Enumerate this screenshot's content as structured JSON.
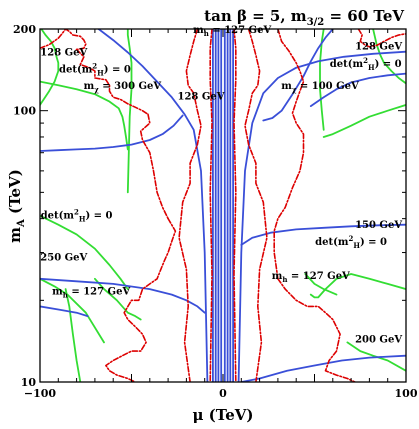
{
  "chart_data": {
    "type": "line",
    "title": {
      "main": "tan β = 5, m",
      "sub": "3/2",
      "rest": " = 60 TeV"
    },
    "xlabel": "μ (TeV)",
    "ylabel": {
      "main": "m",
      "sub": "A",
      "rest": " (TeV)"
    },
    "xlim": [
      -100,
      100
    ],
    "ylim": [
      10,
      200
    ],
    "yscale": "log",
    "grid": false,
    "x_ticks": [
      "−100",
      "0",
      "100"
    ],
    "y_ticks": [
      "10",
      "100",
      "200"
    ],
    "colors": {
      "green": "#33dd33",
      "red": "#dd0000",
      "blue": "#3a4fd8"
    },
    "annotations": [
      {
        "text": "128 GeV",
        "x": -87,
        "y": 160
      },
      {
        "text": "128 GeV",
        "x": 85,
        "y": 168
      },
      {
        "text": "m",
        "sub": "h",
        "rest": " = 127 GeV",
        "x": 5,
        "y": 193
      },
      {
        "text": "det(m",
        "sup": "2",
        "sub": "H",
        "rest": ") = 0",
        "x": -70,
        "y": 138
      },
      {
        "text": "det(m",
        "sup": "2",
        "sub": "H",
        "rest": ") = 0",
        "x": 78,
        "y": 145
      },
      {
        "text": "m",
        "sub": "χ",
        "rest": " = 300 GeV",
        "x": -55,
        "y": 120
      },
      {
        "text": "m",
        "sub": "χ",
        "rest": " = 100 GeV",
        "x": 53,
        "y": 120
      },
      {
        "text": "128 GeV",
        "x": -12,
        "y": 110
      },
      {
        "text": "det(m",
        "sup": "2",
        "sub": "H",
        "rest": ") = 0",
        "x": -80,
        "y": 40
      },
      {
        "text": "det(m",
        "sup": "2",
        "sub": "H",
        "rest": ") = 0",
        "x": 70,
        "y": 32
      },
      {
        "text": "150 GeV",
        "x": 85,
        "y": 37
      },
      {
        "text": "250 GeV",
        "x": -87,
        "y": 28
      },
      {
        "text": "m",
        "sub": "h",
        "rest": " = 127 GeV",
        "x": 48,
        "y": 24
      },
      {
        "text": "m",
        "sub": "h",
        "rest": " = 127 GeV",
        "x": -72,
        "y": 21
      },
      {
        "text": "200 GeV",
        "x": 85,
        "y": 14
      }
    ],
    "series": [
      {
        "color": "green",
        "style": "solid",
        "x": [
          -99,
          -97,
          -94,
          -92,
          -91,
          -90,
          -90,
          -92,
          -95,
          -98,
          -100
        ],
        "y": [
          199,
          190,
          180,
          170,
          158,
          150,
          140,
          128,
          118,
          110,
          105
        ]
      },
      {
        "color": "green",
        "style": "solid",
        "x": [
          -100,
          -90,
          -80,
          -70,
          -62,
          -57,
          -55,
          -54,
          -53,
          -52
        ],
        "y": [
          128,
          124,
          120,
          115,
          108,
          102,
          95,
          88,
          80,
          72
        ]
      },
      {
        "color": "green",
        "style": "solid",
        "x": [
          -52,
          -51,
          -50,
          -50,
          -51,
          -52,
          -52
        ],
        "y": [
          50,
          95,
          120,
          150,
          170,
          190,
          200
        ]
      },
      {
        "color": "green",
        "style": "solid",
        "x": [
          -100,
          -90,
          -80,
          -70,
          -62,
          -56,
          -52
        ],
        "y": [
          41,
          38,
          35,
          31,
          27,
          24,
          22
        ]
      },
      {
        "color": "green",
        "style": "solid",
        "x": [
          -100,
          -92,
          -85,
          -75,
          -65
        ],
        "y": [
          24,
          22.5,
          21,
          18,
          14
        ]
      },
      {
        "color": "green",
        "style": "solid",
        "x": [
          -86,
          -84,
          -82,
          -80,
          -78
        ],
        "y": [
          22,
          19,
          15,
          12,
          10
        ]
      },
      {
        "color": "green",
        "style": "solid",
        "x": [
          -70,
          -65,
          -58,
          -52,
          -48,
          -45
        ],
        "y": [
          24,
          22,
          20,
          18,
          17.5,
          17
        ]
      },
      {
        "color": "green",
        "style": "solid",
        "x": [
          82,
          84,
          86,
          88,
          92,
          96,
          100
        ],
        "y": [
          200,
          175,
          160,
          150,
          140,
          132,
          126
        ]
      },
      {
        "color": "green",
        "style": "solid",
        "x": [
          55,
          54,
          53,
          53,
          54,
          55
        ],
        "y": [
          200,
          180,
          150,
          120,
          100,
          85
        ]
      },
      {
        "color": "green",
        "style": "solid",
        "x": [
          55,
          60,
          70,
          80,
          90,
          100
        ],
        "y": [
          80,
          82,
          88,
          95,
          100,
          105
        ]
      },
      {
        "color": "green",
        "style": "solid",
        "x": [
          48,
          50,
          52,
          56,
          62,
          70,
          80,
          90,
          100
        ],
        "y": [
          21,
          20.5,
          20.5,
          22,
          24,
          25,
          24,
          23,
          22
        ]
      },
      {
        "color": "green",
        "style": "solid",
        "x": [
          68,
          75,
          82,
          90,
          100
        ],
        "y": [
          14,
          13,
          12.5,
          12,
          11
        ]
      },
      {
        "color": "green",
        "style": "solid",
        "x": [
          45,
          50,
          55,
          62
        ],
        "y": [
          25,
          23,
          22,
          21
        ]
      },
      {
        "color": "blue",
        "style": "solid",
        "x": [
          -68,
          -60,
          -52,
          -44,
          -36,
          -28,
          -21,
          -16,
          -12,
          -10,
          -8.5
        ],
        "y": [
          200,
          182,
          164,
          146,
          128,
          112,
          97,
          85,
          60,
          30,
          10
        ]
      },
      {
        "color": "blue",
        "style": "solid",
        "x": [
          -100,
          -90,
          -80,
          -70,
          -60,
          -50,
          -40,
          -33,
          -27,
          -22
        ],
        "y": [
          71,
          71.5,
          72,
          72.5,
          73.5,
          75,
          78,
          82,
          88,
          96
        ]
      },
      {
        "color": "blue",
        "style": "solid",
        "x": [
          8.5,
          10,
          12,
          16,
          22,
          30,
          40,
          52,
          66,
          82,
          100
        ],
        "y": [
          10,
          30,
          60,
          90,
          116,
          132,
          144,
          152,
          158,
          162,
          165
        ]
      },
      {
        "color": "blue",
        "style": "solid",
        "x": [
          60,
          56,
          52,
          48,
          44,
          38,
          32,
          27,
          22
        ],
        "y": [
          200,
          186,
          170,
          152,
          134,
          115,
          100,
          94,
          92
        ]
      },
      {
        "color": "blue",
        "style": "solid",
        "x": [
          48,
          55,
          62,
          70,
          80,
          90,
          100
        ],
        "y": [
          104,
          112,
          120,
          127,
          132,
          135,
          137
        ]
      },
      {
        "color": "blue",
        "style": "solid",
        "x": [
          -100,
          -80,
          -60,
          -40,
          -28,
          -20,
          -14,
          -10
        ],
        "y": [
          24,
          23.5,
          23,
          22,
          21,
          20,
          19,
          18
        ]
      },
      {
        "color": "blue",
        "style": "solid",
        "x": [
          10,
          16,
          26,
          40,
          55,
          70,
          85,
          100
        ],
        "y": [
          32,
          34,
          35.5,
          36.5,
          37,
          37.5,
          37.8,
          38
        ]
      },
      {
        "color": "blue",
        "style": "solid",
        "x": [
          10,
          20,
          35,
          50,
          65,
          80,
          100
        ],
        "y": [
          10,
          10.3,
          11,
          11.5,
          12,
          12.3,
          12.5
        ]
      },
      {
        "color": "blue",
        "style": "solid",
        "x": [
          -100,
          -90,
          -80,
          -74
        ],
        "y": [
          19,
          18.5,
          18,
          17.5
        ]
      },
      {
        "color": "blue",
        "style": "solid",
        "x": [
          -5.5,
          -5.5
        ],
        "y": [
          10,
          200
        ]
      },
      {
        "color": "blue",
        "style": "solid",
        "x": [
          -4,
          -4
        ],
        "y": [
          10,
          200
        ]
      },
      {
        "color": "blue",
        "style": "solid",
        "x": [
          -2.5,
          -2.5
        ],
        "y": [
          10,
          200
        ]
      },
      {
        "color": "blue",
        "style": "solid",
        "x": [
          -1,
          -1
        ],
        "y": [
          10,
          200
        ]
      },
      {
        "color": "blue",
        "style": "solid",
        "x": [
          1,
          1
        ],
        "y": [
          10,
          200
        ]
      },
      {
        "color": "blue",
        "style": "solid",
        "x": [
          2.5,
          2.5
        ],
        "y": [
          10,
          200
        ]
      },
      {
        "color": "blue",
        "style": "solid",
        "x": [
          4,
          4
        ],
        "y": [
          10,
          200
        ]
      },
      {
        "color": "blue",
        "style": "solid",
        "x": [
          5.5,
          5.5
        ],
        "y": [
          10,
          200
        ]
      },
      {
        "color": "red",
        "style": "dashdot",
        "x": [
          -100,
          -95,
          -90,
          -88,
          -87,
          -86,
          -84,
          -82,
          -78,
          -76,
          -75,
          -76,
          -80
        ],
        "y": [
          170,
          175,
          185,
          192,
          196,
          200,
          196,
          190,
          188,
          182,
          176,
          170,
          168
        ]
      },
      {
        "color": "red",
        "style": "dashdot",
        "x": [
          -80,
          -76,
          -78,
          -73,
          -70,
          -70,
          -64,
          -62,
          -62,
          -60,
          -56,
          -52,
          -48,
          -44,
          -41
        ],
        "y": [
          168,
          158,
          148,
          144,
          140,
          132,
          130,
          124,
          118,
          112,
          110,
          106,
          103,
          100,
          97
        ]
      },
      {
        "color": "red",
        "style": "dashdot",
        "x": [
          -41,
          -40,
          -45,
          -44,
          -40,
          -38,
          -36,
          -33,
          -30
        ],
        "y": [
          97,
          90,
          84,
          78,
          70,
          60,
          50,
          44,
          40
        ]
      },
      {
        "color": "red",
        "style": "dashdot",
        "x": [
          -30,
          -26,
          -28,
          -30,
          -32,
          -34,
          -36,
          -40,
          -44,
          -46,
          -50,
          -54,
          -52,
          -48,
          -44,
          -42,
          -45,
          -50,
          -55,
          -60,
          -64,
          -62,
          -58,
          -52,
          -48
        ],
        "y": [
          40,
          36,
          33,
          30,
          28,
          26,
          24,
          23,
          22,
          20,
          20,
          18,
          17,
          16,
          15,
          14,
          13,
          13,
          12.5,
          12,
          11.5,
          11,
          10.6,
          10.3,
          10
        ]
      },
      {
        "color": "red",
        "style": "dashdot",
        "x": [
          -14,
          -16,
          -18,
          -20,
          -19,
          -16,
          -14,
          -12,
          -14,
          -18,
          -18,
          -22,
          -24,
          -20,
          -19,
          -21,
          -18
        ],
        "y": [
          200,
          180,
          160,
          140,
          124,
          116,
          100,
          88,
          75,
          64,
          54,
          46,
          34,
          26,
          19,
          14,
          10
        ]
      },
      {
        "color": "red",
        "style": "dashdot",
        "x": [
          -6,
          -7,
          -7,
          -6,
          -7,
          -6,
          -7
        ],
        "y": [
          200,
          170,
          130,
          90,
          50,
          25,
          10
        ]
      },
      {
        "color": "red",
        "style": "dashdot",
        "x": [
          6,
          7,
          7,
          6,
          7,
          6,
          7
        ],
        "y": [
          200,
          170,
          130,
          90,
          50,
          25,
          10
        ]
      },
      {
        "color": "red",
        "style": "dashdot",
        "x": [
          14,
          16,
          18,
          20,
          19,
          16,
          14,
          12,
          14,
          18,
          18,
          22,
          24,
          20,
          19,
          21,
          18
        ],
        "y": [
          200,
          180,
          160,
          140,
          124,
          116,
          100,
          88,
          75,
          64,
          54,
          46,
          34,
          26,
          19,
          14,
          10
        ]
      },
      {
        "color": "red",
        "style": "dashdot",
        "x": [
          30,
          32,
          36,
          40,
          42,
          44,
          42,
          40,
          38,
          40,
          44,
          44,
          42,
          38,
          34,
          30,
          28,
          28,
          30
        ],
        "y": [
          200,
          180,
          166,
          150,
          140,
          128,
          118,
          108,
          98,
          90,
          82,
          70,
          60,
          52,
          44,
          40,
          36,
          30,
          24
        ]
      },
      {
        "color": "red",
        "style": "dashdot",
        "x": [
          30,
          34,
          40,
          46,
          52,
          56,
          60,
          64,
          62,
          58,
          56,
          62,
          68,
          72
        ],
        "y": [
          24,
          22,
          20,
          19,
          19,
          18,
          17,
          15,
          13,
          12,
          11,
          10.6,
          10.3,
          10
        ]
      },
      {
        "color": "red",
        "style": "dashdot",
        "x": [
          74,
          76,
          75,
          78,
          80,
          84,
          88,
          92,
          96,
          100
        ],
        "y": [
          200,
          190,
          180,
          174,
          172,
          174,
          180,
          186,
          190,
          192
        ]
      }
    ]
  }
}
